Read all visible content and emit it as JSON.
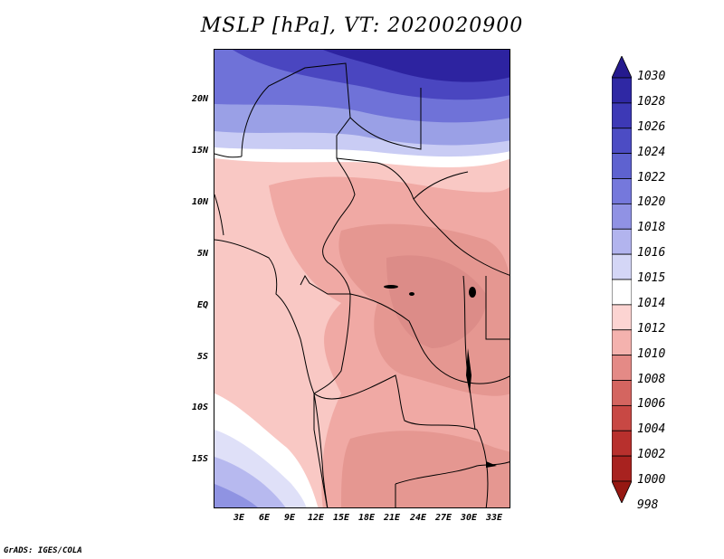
{
  "title": "MSLP [hPa], VT: 2020020900",
  "credit": "GrADS: IGES/COLA",
  "lat_labels": [
    "20N",
    "15N",
    "10N",
    "5N",
    "EQ",
    "5S",
    "10S",
    "15S"
  ],
  "lon_labels": [
    "3E",
    "6E",
    "9E",
    "12E",
    "15E",
    "18E",
    "21E",
    "24E",
    "27E",
    "30E",
    "33E"
  ],
  "colorbar": {
    "levels": [
      "1030",
      "1028",
      "1026",
      "1024",
      "1022",
      "1020",
      "1018",
      "1016",
      "1015",
      "1014",
      "1012",
      "1010",
      "1008",
      "1006",
      "1004",
      "1002",
      "1000",
      "998"
    ],
    "colors": [
      "#251a8e",
      "#2f28a4",
      "#3d39b6",
      "#4c4cc4",
      "#5e62d0",
      "#7578dc",
      "#9092e4",
      "#b2b4ee",
      "#d4d6f6",
      "#ffffff",
      "#fcd4d2",
      "#f4b2ae",
      "#e48a86",
      "#d46560",
      "#c84844",
      "#b8302d",
      "#a8221f",
      "#961812"
    ]
  },
  "map_fields": {
    "background": "#f9c8c4",
    "north_high_colors": [
      "#2d23a0",
      "#4a46c0",
      "#6f72d8",
      "#9aa0e6",
      "#c9ccf4",
      "#ffffff"
    ],
    "central_low_colors": [
      "#f0a9a4",
      "#e59791",
      "#dc8c88"
    ],
    "southwest_high_colors": [
      "#ffffff",
      "#dfe0f8",
      "#b7b9ef",
      "#8f93e2"
    ]
  }
}
